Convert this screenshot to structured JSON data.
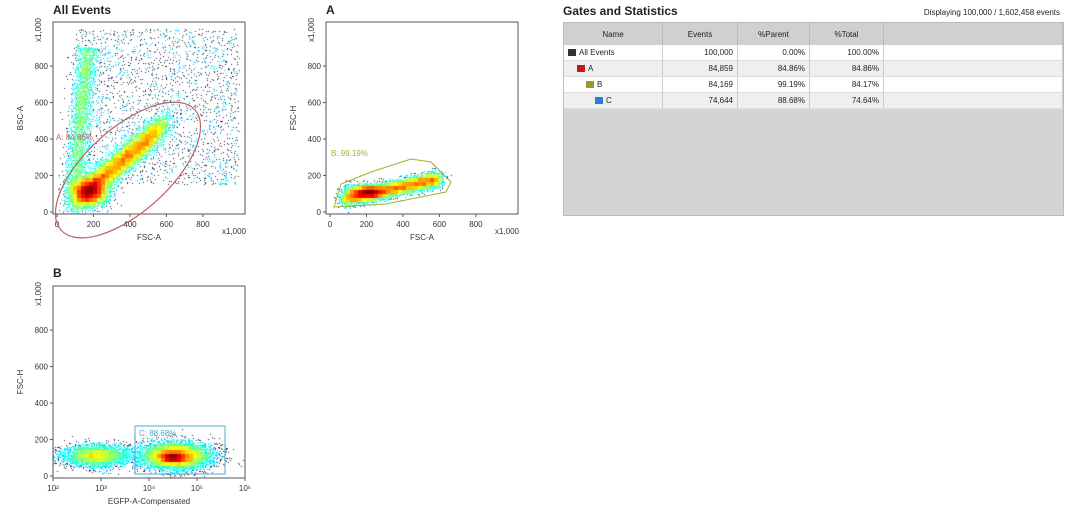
{
  "stats": {
    "title": "Gates and Statistics",
    "displaying": "Displaying 100,000 / 1,602,458 events",
    "columns": [
      "Name",
      "Events",
      "%Parent",
      "%Total"
    ],
    "rows": [
      {
        "name": "All Events",
        "events": "100,000",
        "parent": "0.00%",
        "total": "100.00%",
        "color": "#333333",
        "level": 0
      },
      {
        "name": "A",
        "events": "84,859",
        "parent": "84.86%",
        "total": "84.86%",
        "color": "#c01818",
        "level": 1
      },
      {
        "name": "B",
        "events": "84,169",
        "parent": "99.19%",
        "total": "84.17%",
        "color": "#9a9a20",
        "level": 2
      },
      {
        "name": "C",
        "events": "74,644",
        "parent": "88.68%",
        "total": "74.64%",
        "color": "#2a7fd4",
        "level": 3
      }
    ]
  },
  "plots": [
    {
      "title": "All Events",
      "xlabel": "FSC-A",
      "ylabel": "BSC-A",
      "xscale": "x1,000",
      "yscale": "x1,000",
      "xticks": [
        "0",
        "200",
        "400",
        "600",
        "800"
      ],
      "yticks": [
        "0",
        "200",
        "400",
        "600",
        "800"
      ],
      "gate_label": "A: 84.86%",
      "gate_color": "#c06060"
    },
    {
      "title": "A",
      "xlabel": "FSC-A",
      "ylabel": "FSC-H",
      "xscale": "x1,000",
      "yscale": "x1,000",
      "xticks": [
        "0",
        "200",
        "400",
        "600",
        "800"
      ],
      "yticks": [
        "0",
        "200",
        "400",
        "600",
        "800"
      ],
      "gate_label": "B: 99.19%",
      "gate_color": "#a0b030"
    },
    {
      "title": "B",
      "xlabel": "EGFP-A-Compensated",
      "ylabel": "FSC-H",
      "xscale": "",
      "yscale": "x1,000",
      "xticks": [
        "10²",
        "10³",
        "10⁴",
        "10⁵",
        "10⁶"
      ],
      "yticks": [
        "0",
        "200",
        "400",
        "600",
        "800"
      ],
      "gate_label": "C: 88.68%",
      "gate_color": "#50a8d0"
    }
  ]
}
